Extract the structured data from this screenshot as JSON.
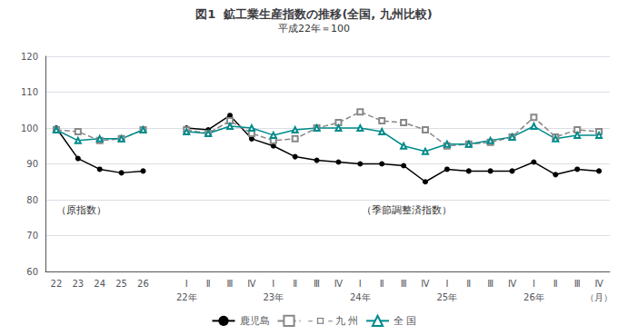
{
  "chart_data": {
    "type": "line",
    "title": "図1  鉱工業生産指数の推移(全国, 九州比較)",
    "subtitle": "平成22年＝100",
    "categories": [
      "22",
      "23",
      "24",
      "25",
      "26",
      null,
      "Ⅰ",
      "Ⅱ",
      "Ⅲ",
      "Ⅳ",
      "Ⅰ",
      "Ⅱ",
      "Ⅲ",
      "Ⅳ",
      "Ⅰ",
      "Ⅱ",
      "Ⅲ",
      "Ⅳ",
      "Ⅰ",
      "Ⅱ",
      "Ⅲ",
      "Ⅳ",
      "Ⅰ",
      "Ⅱ",
      "Ⅲ",
      "Ⅳ"
    ],
    "year_labels": [
      null,
      null,
      null,
      null,
      null,
      null,
      "22年",
      null,
      null,
      null,
      "23年",
      null,
      null,
      null,
      "24年",
      null,
      null,
      null,
      "25年",
      null,
      null,
      null,
      "26年",
      null,
      null,
      "（月）"
    ],
    "annotations": [
      "（原指数）",
      "（季節調整済指数）"
    ],
    "series": [
      {
        "name": "鹿児島",
        "color": "#000000",
        "marker": "circle",
        "line_style": "solid",
        "values": [
          100.0,
          91.5,
          88.5,
          87.5,
          88.0,
          null,
          100.0,
          99.5,
          103.5,
          97.0,
          95.0,
          92.0,
          91.0,
          90.5,
          90.0,
          90.0,
          89.5,
          85.0,
          88.5,
          88.0,
          88.0,
          88.0,
          90.5,
          87.0,
          88.5,
          88.0
        ]
      },
      {
        "name": "－ロ－九 州",
        "color": "#888888",
        "marker": "square_open",
        "line_style": "dashed",
        "values": [
          99.5,
          99.0,
          96.5,
          97.0,
          99.5,
          null,
          99.5,
          98.5,
          102.0,
          98.5,
          96.5,
          97.0,
          100.0,
          101.5,
          104.5,
          102.0,
          101.5,
          99.5,
          95.0,
          95.5,
          96.0,
          97.5,
          103.0,
          97.5,
          99.5,
          99.0
        ]
      },
      {
        "name": "全 国",
        "color": "#008B8B",
        "marker": "triangle_open",
        "line_style": "solid",
        "values": [
          99.5,
          96.5,
          97.0,
          97.0,
          99.5,
          null,
          99.0,
          98.5,
          100.5,
          100.0,
          98.0,
          99.5,
          100.0,
          100.0,
          100.0,
          99.0,
          95.0,
          93.5,
          95.5,
          95.5,
          96.5,
          97.5,
          100.5,
          97.0,
          98.0,
          98.0
        ]
      }
    ],
    "ylim": [
      60,
      120
    ],
    "yticks": [
      60,
      70,
      80,
      90,
      100,
      110,
      120
    ],
    "grid": true,
    "legend": "bottom"
  }
}
